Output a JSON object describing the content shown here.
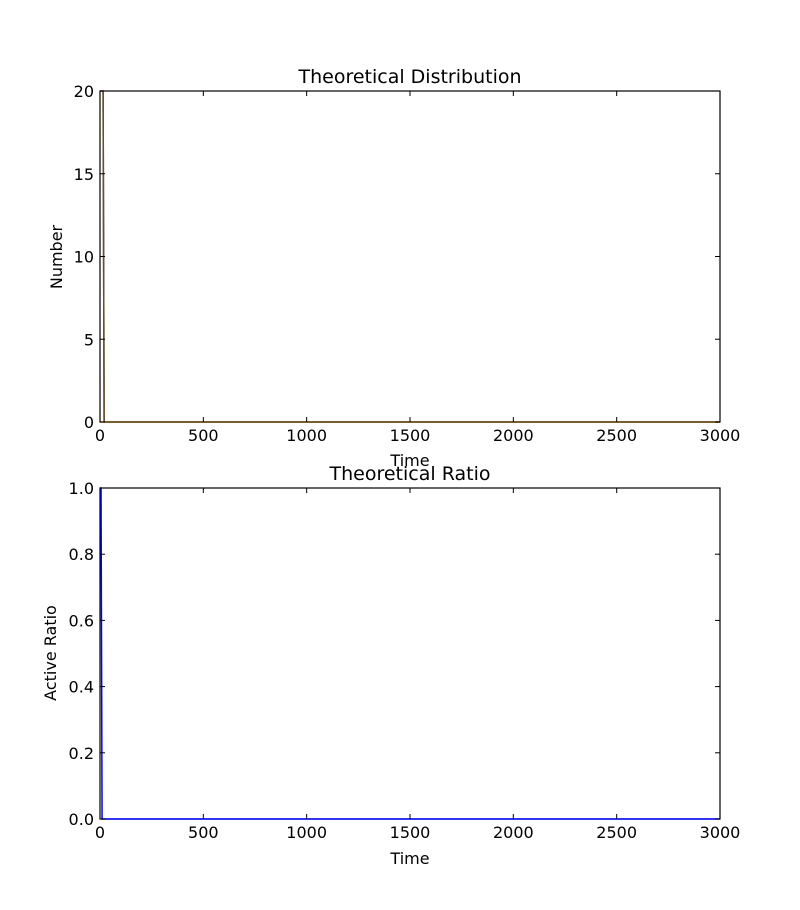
{
  "chart_data": [
    {
      "type": "line",
      "title": "Theoretical Distribution",
      "xlabel": "Time",
      "ylabel": "Number",
      "xlim": [
        0,
        3000
      ],
      "ylim": [
        0,
        20
      ],
      "xticks": [
        "0",
        "500",
        "1000",
        "1500",
        "2000",
        "2500",
        "3000"
      ],
      "yticks": [
        "0",
        "5",
        "10",
        "15",
        "20"
      ],
      "grid": false,
      "series": [
        {
          "color": "#3a3a8c",
          "x": [
            0,
            5,
            10,
            15,
            20,
            3000
          ],
          "y": [
            20,
            20,
            20,
            20,
            0,
            0
          ]
        },
        {
          "color": "#d4a017",
          "x": [
            0,
            20,
            25,
            3000
          ],
          "y": [
            0,
            0,
            0,
            0
          ]
        },
        {
          "color": "#6b4f1d",
          "x": [
            0,
            5,
            10,
            15,
            20,
            3000
          ],
          "y": [
            20,
            20,
            20,
            20,
            0,
            0
          ]
        }
      ]
    },
    {
      "type": "line",
      "title": "Theoretical Ratio",
      "xlabel": "Time",
      "ylabel": "Active Ratio",
      "xlim": [
        0,
        3000
      ],
      "ylim": [
        0,
        1.0
      ],
      "xticks": [
        "0",
        "500",
        "1000",
        "1500",
        "2000",
        "2500",
        "3000"
      ],
      "yticks": [
        "0.0",
        "0.2",
        "0.4",
        "0.6",
        "0.8",
        "1.0"
      ],
      "grid": false,
      "series": [
        {
          "color": "#0000ff",
          "x": [
            0,
            5,
            10,
            3000
          ],
          "y": [
            1.0,
            1.0,
            0,
            0
          ]
        }
      ]
    }
  ]
}
